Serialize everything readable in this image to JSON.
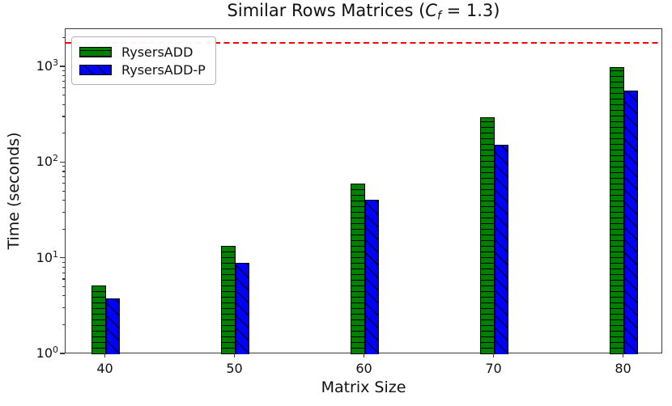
{
  "figure": {
    "title": {
      "pre": "Similar Rows Matrices (",
      "var": "C",
      "sub": "f",
      "post": " = 1.3)"
    },
    "xlabel": "Matrix Size",
    "ylabel": "Time (seconds)"
  },
  "legend": {
    "items": [
      {
        "label": "RysersADD"
      },
      {
        "label": "RysersADD-P"
      }
    ]
  },
  "chart_data": {
    "type": "bar",
    "title": "Similar Rows Matrices (C_f = 1.3)",
    "xlabel": "Matrix Size",
    "ylabel": "Time (seconds)",
    "yscale": "log",
    "ylim": [
      1,
      2500
    ],
    "ytick_exponents": [
      0,
      1,
      2,
      3
    ],
    "categories": [
      "40",
      "50",
      "60",
      "70",
      "80"
    ],
    "series": [
      {
        "name": "RysersADD",
        "color": "#008000",
        "hatch": "-",
        "values": [
          5.2,
          13.5,
          61,
          300,
          1000
        ]
      },
      {
        "name": "RysersADD-P",
        "color": "#0000ff",
        "hatch": "\\",
        "values": [
          3.8,
          9.0,
          41,
          155,
          570
        ]
      }
    ],
    "hline": {
      "value": 1800,
      "color": "#ff0000",
      "style": "dashed"
    },
    "legend_position": "upper left",
    "grid": false
  }
}
